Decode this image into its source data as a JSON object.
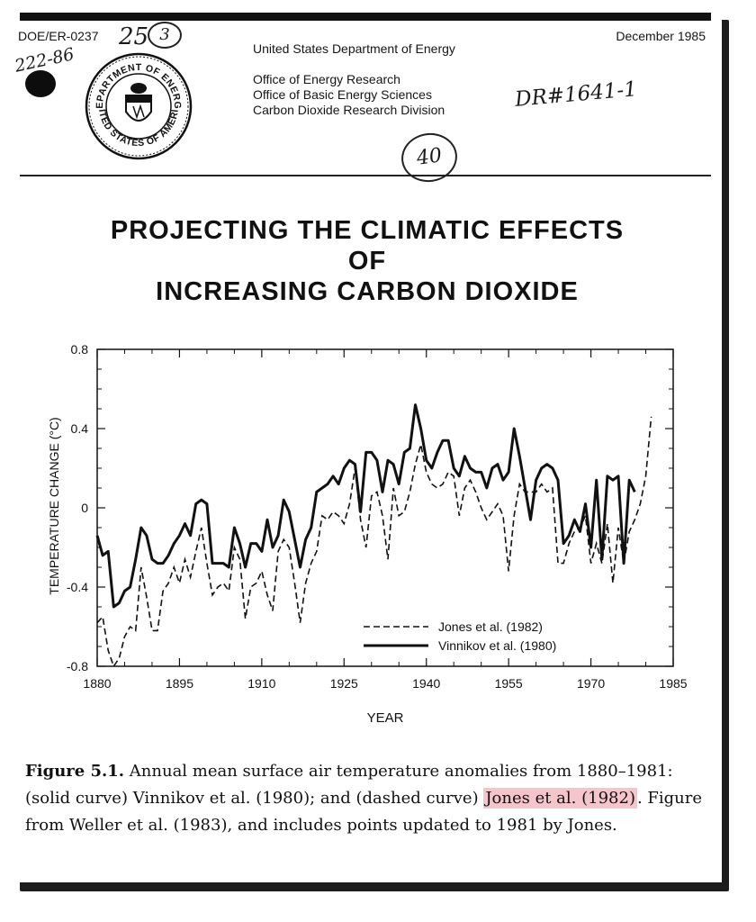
{
  "header": {
    "report_number": "DOE/ER-0237",
    "date": "December 1985",
    "agency": "United States Department of Energy",
    "offices": [
      "Office of Energy Research",
      "Office of Basic Energy Sciences",
      "Carbon Dioxide Research Division"
    ],
    "seal_text": [
      "DEPARTMENT OF ENERGY",
      "UNITED STATES OF AMERICA"
    ],
    "handwritten": {
      "serial": "25",
      "circled_digit": "3",
      "date_note": "222-86",
      "dr_note": "DR#1641-1",
      "circled_number": "40"
    }
  },
  "title": {
    "lines": [
      "PROJECTING THE CLIMATIC EFFECTS",
      "OF",
      "INCREASING CARBON DIOXIDE"
    ]
  },
  "chart_data": {
    "type": "line",
    "xlabel": "YEAR",
    "ylabel": "TEMPERATURE CHANGE (°C)",
    "xlim": [
      1880,
      1985
    ],
    "ylim": [
      -0.8,
      0.8
    ],
    "x_ticks": [
      "1880",
      "1895",
      "1910",
      "1925",
      "1940",
      "1955",
      "1970",
      "1985"
    ],
    "y_ticks": [
      "0.8",
      "0.4",
      "0",
      "-0.4",
      "-0.8"
    ],
    "legend_position": "lower-right",
    "series": [
      {
        "name": "Jones et al. (1982)",
        "style": "dashed",
        "x": [
          1880,
          1881,
          1882,
          1883,
          1884,
          1885,
          1886,
          1887,
          1888,
          1889,
          1890,
          1891,
          1892,
          1893,
          1894,
          1895,
          1896,
          1897,
          1898,
          1899,
          1900,
          1901,
          1902,
          1903,
          1904,
          1905,
          1906,
          1907,
          1908,
          1909,
          1910,
          1911,
          1912,
          1913,
          1914,
          1915,
          1916,
          1917,
          1918,
          1919,
          1920,
          1921,
          1922,
          1923,
          1924,
          1925,
          1926,
          1927,
          1928,
          1929,
          1930,
          1931,
          1932,
          1933,
          1934,
          1935,
          1936,
          1937,
          1938,
          1939,
          1940,
          1941,
          1942,
          1943,
          1944,
          1945,
          1946,
          1947,
          1948,
          1949,
          1950,
          1951,
          1952,
          1953,
          1954,
          1955,
          1956,
          1957,
          1958,
          1959,
          1960,
          1961,
          1962,
          1963,
          1964,
          1965,
          1966,
          1967,
          1968,
          1969,
          1970,
          1971,
          1972,
          1973,
          1974,
          1975,
          1976,
          1977,
          1978,
          1979,
          1980,
          1981
        ],
        "values": [
          -0.58,
          -0.55,
          -0.72,
          -0.82,
          -0.76,
          -0.65,
          -0.6,
          -0.62,
          -0.3,
          -0.45,
          -0.62,
          -0.62,
          -0.42,
          -0.38,
          -0.3,
          -0.38,
          -0.26,
          -0.35,
          -0.22,
          -0.1,
          -0.28,
          -0.44,
          -0.4,
          -0.38,
          -0.42,
          -0.2,
          -0.26,
          -0.56,
          -0.4,
          -0.38,
          -0.32,
          -0.44,
          -0.52,
          -0.22,
          -0.16,
          -0.2,
          -0.38,
          -0.58,
          -0.38,
          -0.28,
          -0.22,
          -0.04,
          -0.06,
          -0.02,
          -0.04,
          -0.08,
          0.02,
          0.2,
          -0.06,
          -0.2,
          0.06,
          0.08,
          -0.04,
          -0.26,
          0.1,
          -0.04,
          -0.02,
          0.08,
          0.22,
          0.32,
          0.18,
          0.12,
          0.1,
          0.12,
          0.18,
          0.16,
          -0.04,
          0.1,
          0.14,
          0.08,
          0.0,
          -0.06,
          -0.02,
          0.02,
          -0.04,
          -0.32,
          -0.04,
          0.12,
          0.08,
          0.08,
          0.08,
          0.12,
          0.08,
          0.1,
          -0.28,
          -0.28,
          -0.18,
          -0.12,
          -0.1,
          -0.04,
          -0.28,
          -0.18,
          -0.28,
          -0.08,
          -0.38,
          -0.1,
          -0.28,
          -0.12,
          -0.06,
          0.02,
          0.16,
          0.46
        ]
      },
      {
        "name": "Vinnikov et al. (1980)",
        "style": "solid",
        "x": [
          1880,
          1881,
          1882,
          1883,
          1884,
          1885,
          1886,
          1887,
          1888,
          1889,
          1890,
          1891,
          1892,
          1893,
          1894,
          1895,
          1896,
          1897,
          1898,
          1899,
          1900,
          1901,
          1902,
          1903,
          1904,
          1905,
          1906,
          1907,
          1908,
          1909,
          1910,
          1911,
          1912,
          1913,
          1914,
          1915,
          1916,
          1917,
          1918,
          1919,
          1920,
          1921,
          1922,
          1923,
          1924,
          1925,
          1926,
          1927,
          1928,
          1929,
          1930,
          1931,
          1932,
          1933,
          1934,
          1935,
          1936,
          1937,
          1938,
          1939,
          1940,
          1941,
          1942,
          1943,
          1944,
          1945,
          1946,
          1947,
          1948,
          1949,
          1950,
          1951,
          1952,
          1953,
          1954,
          1955,
          1956,
          1957,
          1958,
          1959,
          1960,
          1961,
          1962,
          1963,
          1964,
          1965,
          1966,
          1967,
          1968,
          1969,
          1970,
          1971,
          1972,
          1973,
          1974,
          1975,
          1976,
          1977,
          1978
        ],
        "values": [
          -0.14,
          -0.24,
          -0.22,
          -0.5,
          -0.48,
          -0.42,
          -0.4,
          -0.26,
          -0.1,
          -0.14,
          -0.26,
          -0.28,
          -0.28,
          -0.24,
          -0.18,
          -0.14,
          -0.08,
          -0.14,
          0.02,
          0.04,
          0.02,
          -0.28,
          -0.28,
          -0.28,
          -0.3,
          -0.1,
          -0.18,
          -0.3,
          -0.18,
          -0.18,
          -0.22,
          -0.06,
          -0.2,
          -0.14,
          0.04,
          -0.02,
          -0.16,
          -0.3,
          -0.16,
          -0.1,
          0.08,
          0.1,
          0.12,
          0.16,
          0.12,
          0.2,
          0.24,
          0.22,
          -0.02,
          0.28,
          0.28,
          0.24,
          0.08,
          0.24,
          0.22,
          0.12,
          0.28,
          0.3,
          0.52,
          0.4,
          0.24,
          0.2,
          0.28,
          0.34,
          0.34,
          0.2,
          0.16,
          0.26,
          0.2,
          0.18,
          0.18,
          0.1,
          0.2,
          0.22,
          0.14,
          0.18,
          0.4,
          0.26,
          0.1,
          -0.06,
          0.14,
          0.2,
          0.22,
          0.2,
          0.14,
          -0.18,
          -0.14,
          -0.06,
          -0.12,
          0.02,
          -0.2,
          0.14,
          -0.26,
          0.16,
          0.14,
          0.16,
          -0.28,
          0.14,
          0.08
        ]
      }
    ]
  },
  "caption": {
    "label": "Figure 5.1.",
    "text_1": " Annual mean surface air temperature anomalies from 1880–1981: (solid curve) Vinnikov et al. (1980); and (dashed curve) ",
    "highlight": "Jones et al. (1982)",
    "text_2": ". Figure from Weller et al. (1983), and includes points updated to 1981 by Jones."
  },
  "colors": {
    "highlight": "#f4c6cc",
    "ink": "#111111",
    "shadow": "#1c1c1c"
  }
}
